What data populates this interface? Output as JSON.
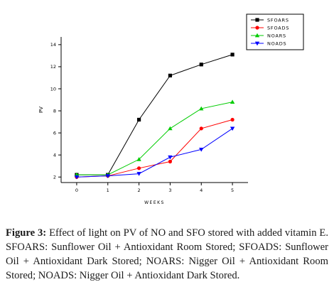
{
  "chart_data": {
    "type": "line",
    "x": [
      0,
      1,
      2,
      3,
      4,
      5
    ],
    "xlabel": "WEEKS",
    "ylabel": "PV",
    "xlim": [
      -0.5,
      5.5
    ],
    "ylim": [
      1.5,
      14.7
    ],
    "xticks": [
      0,
      1,
      2,
      3,
      4,
      5
    ],
    "yticks": [
      2,
      4,
      6,
      8,
      10,
      12,
      14
    ],
    "grid": false,
    "legend_position": "top-right",
    "series": [
      {
        "name": "SFOARS",
        "color": "#000000",
        "marker": "square",
        "values": [
          2.2,
          2.2,
          7.2,
          11.2,
          12.2,
          13.1
        ]
      },
      {
        "name": "SFOADS",
        "color": "#ff0000",
        "marker": "circle",
        "values": [
          2.0,
          2.1,
          2.8,
          3.4,
          6.4,
          7.2
        ]
      },
      {
        "name": "NOARS",
        "color": "#00cc00",
        "marker": "triangle-up",
        "values": [
          2.2,
          2.2,
          3.6,
          6.4,
          8.2,
          8.8
        ]
      },
      {
        "name": "NOADS",
        "color": "#0000ff",
        "marker": "triangle-down",
        "values": [
          2.0,
          2.1,
          2.3,
          3.8,
          4.5,
          6.4
        ]
      }
    ]
  },
  "caption": {
    "label": "Figure 3:",
    "text": " Effect of light on PV of NO and SFO stored with added vitamin E. SFOARS: Sunflower Oil + Antioxidant Room Stored; SFOADS: Sunflower Oil + Antioxidant Dark Stored; NOARS: Nigger Oil + Antioxidant Room Stored; NOADS: Nigger Oil + Antioxidant Dark Stored."
  }
}
